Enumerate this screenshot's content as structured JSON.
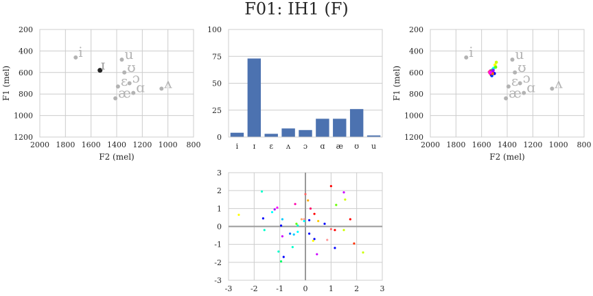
{
  "title": "F01: IH1 (F)",
  "colors": {
    "grid": "#cccccc",
    "frame": "#cccccc",
    "bar": "#4c72b0",
    "vowel_label": "#b3b3b3",
    "target": "#262626",
    "axis_zero": "#999999"
  },
  "chart_data": [
    {
      "id": "vowel-space-left",
      "type": "scatter",
      "xlabel": "F2 (mel)",
      "ylabel": "F1 (mel)",
      "xlim": [
        2000,
        800
      ],
      "ylim": [
        1200,
        200
      ],
      "xticks": [
        "2000",
        "1800",
        "1600",
        "1400",
        "1200",
        "1000",
        "800"
      ],
      "yticks": [
        "200",
        "400",
        "600",
        "800",
        "1000",
        "1200"
      ],
      "grid": true,
      "vowels": [
        {
          "label": "i",
          "x": 1720,
          "y": 460
        },
        {
          "label": "u",
          "x": 1360,
          "y": 480
        },
        {
          "label": "ʊ",
          "x": 1340,
          "y": 600
        },
        {
          "label": "ɔ",
          "x": 1300,
          "y": 700
        },
        {
          "label": "ɛ",
          "x": 1390,
          "y": 730
        },
        {
          "label": "ɑ",
          "x": 1270,
          "y": 790
        },
        {
          "label": "æ",
          "x": 1410,
          "y": 840
        },
        {
          "label": "ʌ",
          "x": 1050,
          "y": 750
        }
      ],
      "target": {
        "label": "ɪ",
        "x": 1530,
        "y": 580
      }
    },
    {
      "id": "vowel-bars",
      "type": "bar",
      "categories": [
        "i",
        "ɪ",
        "ɛ",
        "ʌ",
        "ɔ",
        "ɑ",
        "æ",
        "ʊ",
        "u"
      ],
      "values": [
        4,
        73,
        3,
        8,
        6.5,
        17,
        17,
        26,
        1.5
      ],
      "ylim": [
        0,
        100
      ],
      "yticks": [
        "0",
        "25",
        "50",
        "75",
        "100"
      ],
      "grid": true
    },
    {
      "id": "vowel-space-right",
      "type": "scatter",
      "xlabel": "F2 (mel)",
      "ylabel": "F1 (mel)",
      "xlim": [
        2000,
        800
      ],
      "ylim": [
        1200,
        200
      ],
      "xticks": [
        "2000",
        "1800",
        "1600",
        "1400",
        "1200",
        "1000",
        "800"
      ],
      "yticks": [
        "200",
        "400",
        "600",
        "800",
        "1000",
        "1200"
      ],
      "grid": true,
      "vowels": [
        {
          "label": "i",
          "x": 1720,
          "y": 460
        },
        {
          "label": "u",
          "x": 1360,
          "y": 480
        },
        {
          "label": "ʊ",
          "x": 1340,
          "y": 600
        },
        {
          "label": "ɔ",
          "x": 1300,
          "y": 700
        },
        {
          "label": "ɛ",
          "x": 1390,
          "y": 730
        },
        {
          "label": "ɑ",
          "x": 1270,
          "y": 790
        },
        {
          "label": "æ",
          "x": 1410,
          "y": 840
        },
        {
          "label": "ʌ",
          "x": 1050,
          "y": 750
        }
      ],
      "tokens": [
        {
          "x": 1520,
          "y": 590,
          "color": "#ff00ff"
        },
        {
          "x": 1510,
          "y": 600,
          "color": "#cc00ff"
        },
        {
          "x": 1530,
          "y": 585,
          "color": "#ff0066"
        },
        {
          "x": 1500,
          "y": 610,
          "color": "#0000ff"
        },
        {
          "x": 1515,
          "y": 575,
          "color": "#00ff66"
        },
        {
          "x": 1525,
          "y": 620,
          "color": "#ff0000"
        },
        {
          "x": 1505,
          "y": 560,
          "color": "#00ffff"
        },
        {
          "x": 1535,
          "y": 605,
          "color": "#ff00cc"
        },
        {
          "x": 1495,
          "y": 530,
          "color": "#ffff00"
        },
        {
          "x": 1490,
          "y": 550,
          "color": "#66ff00"
        },
        {
          "x": 1520,
          "y": 630,
          "color": "#0033ff"
        },
        {
          "x": 1540,
          "y": 595,
          "color": "#ff3399"
        },
        {
          "x": 1510,
          "y": 580,
          "color": "#9900ff"
        },
        {
          "x": 1485,
          "y": 505,
          "color": "#ccff00"
        },
        {
          "x": 1515,
          "y": 610,
          "color": "#ff6600"
        },
        {
          "x": 1530,
          "y": 600,
          "color": "#ff00ff"
        }
      ]
    },
    {
      "id": "scatter-bottom",
      "type": "scatter",
      "xlim": [
        -3,
        3
      ],
      "ylim": [
        -3,
        3
      ],
      "xticks": [
        "-3",
        "-2",
        "-1",
        "0",
        "1",
        "2",
        "3"
      ],
      "yticks": [
        "-3",
        "-2",
        "-1",
        "0",
        "1",
        "2",
        "3"
      ],
      "grid": true,
      "points": [
        {
          "x": 1.0,
          "y": 2.25,
          "color": "#ff0000"
        },
        {
          "x": 1.5,
          "y": 1.9,
          "color": "#cc00ff"
        },
        {
          "x": 1.55,
          "y": 1.5,
          "color": "#ccff00"
        },
        {
          "x": 1.2,
          "y": 1.2,
          "color": "#66ff00"
        },
        {
          "x": -1.7,
          "y": 1.95,
          "color": "#00ffcc"
        },
        {
          "x": 0.0,
          "y": 1.8,
          "color": "#ff6666"
        },
        {
          "x": 0.1,
          "y": 1.45,
          "color": "#ffaa00"
        },
        {
          "x": -0.4,
          "y": 1.25,
          "color": "#ff00aa"
        },
        {
          "x": -1.1,
          "y": 1.05,
          "color": "#ff00ff"
        },
        {
          "x": -1.2,
          "y": 0.95,
          "color": "#aa00ff"
        },
        {
          "x": 0.2,
          "y": 1.0,
          "color": "#ff0066"
        },
        {
          "x": -1.3,
          "y": 0.8,
          "color": "#00ffff"
        },
        {
          "x": -2.6,
          "y": 0.65,
          "color": "#ffff00"
        },
        {
          "x": 0.35,
          "y": 0.7,
          "color": "#ff0000"
        },
        {
          "x": -1.65,
          "y": 0.45,
          "color": "#0000ff"
        },
        {
          "x": -0.9,
          "y": 0.4,
          "color": "#00ccff"
        },
        {
          "x": -0.05,
          "y": 0.4,
          "color": "#ff9999"
        },
        {
          "x": 0.15,
          "y": 0.35,
          "color": "#0000ff"
        },
        {
          "x": -0.15,
          "y": 0.4,
          "color": "#ffaa66"
        },
        {
          "x": 0.5,
          "y": 0.3,
          "color": "#ffcc00"
        },
        {
          "x": 0.75,
          "y": 0.15,
          "color": "#0000ff"
        },
        {
          "x": -0.35,
          "y": 0.15,
          "color": "#66ff00"
        },
        {
          "x": -0.95,
          "y": 0.05,
          "color": "#0000ff"
        },
        {
          "x": -0.3,
          "y": 0.05,
          "color": "#00ffcc"
        },
        {
          "x": 1.75,
          "y": 0.4,
          "color": "#ff0000"
        },
        {
          "x": -0.05,
          "y": 0.3,
          "color": "#00ffff"
        },
        {
          "x": 1.0,
          "y": -0.15,
          "color": "#ff6666"
        },
        {
          "x": 1.15,
          "y": -0.2,
          "color": "#ff0000"
        },
        {
          "x": 1.5,
          "y": -0.2,
          "color": "#ccff00"
        },
        {
          "x": -1.6,
          "y": -0.2,
          "color": "#00ffcc"
        },
        {
          "x": -0.3,
          "y": -0.3,
          "color": "#00ffff"
        },
        {
          "x": 0.15,
          "y": -0.4,
          "color": "#0000ff"
        },
        {
          "x": -0.6,
          "y": -0.4,
          "color": "#0066ff"
        },
        {
          "x": -0.45,
          "y": -0.45,
          "color": "#00ccff"
        },
        {
          "x": -0.9,
          "y": -0.55,
          "color": "#cc00ff"
        },
        {
          "x": 0.35,
          "y": -0.7,
          "color": "#0000ff"
        },
        {
          "x": 0.3,
          "y": -0.8,
          "color": "#ffff00"
        },
        {
          "x": 0.85,
          "y": -0.75,
          "color": "#ff9999"
        },
        {
          "x": 1.9,
          "y": -0.95,
          "color": "#ff3300"
        },
        {
          "x": -0.5,
          "y": -1.15,
          "color": "#00ffcc"
        },
        {
          "x": 1.15,
          "y": -1.2,
          "color": "#0000ff"
        },
        {
          "x": -1.05,
          "y": -1.4,
          "color": "#00ffcc"
        },
        {
          "x": 0.45,
          "y": -1.55,
          "color": "#cc00ff"
        },
        {
          "x": -0.85,
          "y": -1.7,
          "color": "#0000ff"
        },
        {
          "x": 2.25,
          "y": -1.45,
          "color": "#ccff00"
        },
        {
          "x": -0.95,
          "y": -1.95,
          "color": "#00ff66"
        }
      ]
    }
  ]
}
